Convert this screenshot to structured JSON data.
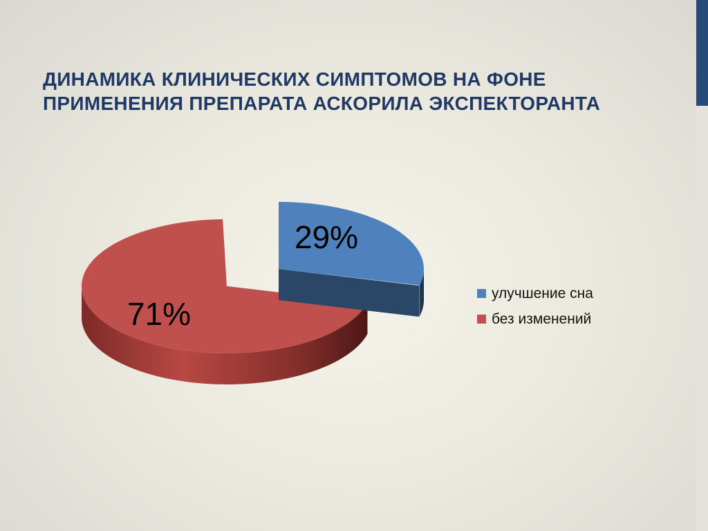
{
  "slide": {
    "title": "Динамика клинических симптомов на фоне применения препарата Аскорила экспекторанта"
  },
  "colors": {
    "title": "#203864",
    "accent_bar": "#264a7a"
  },
  "chart_data": {
    "type": "pie",
    "style": "3d-exploded",
    "legend_position": "right",
    "slices": [
      {
        "label": "улучшение сна",
        "value": 29,
        "value_label": "29%",
        "color": "#4f81bd"
      },
      {
        "label": "без изменений",
        "value": 71,
        "value_label": "71%",
        "color": "#c0504d"
      }
    ]
  }
}
